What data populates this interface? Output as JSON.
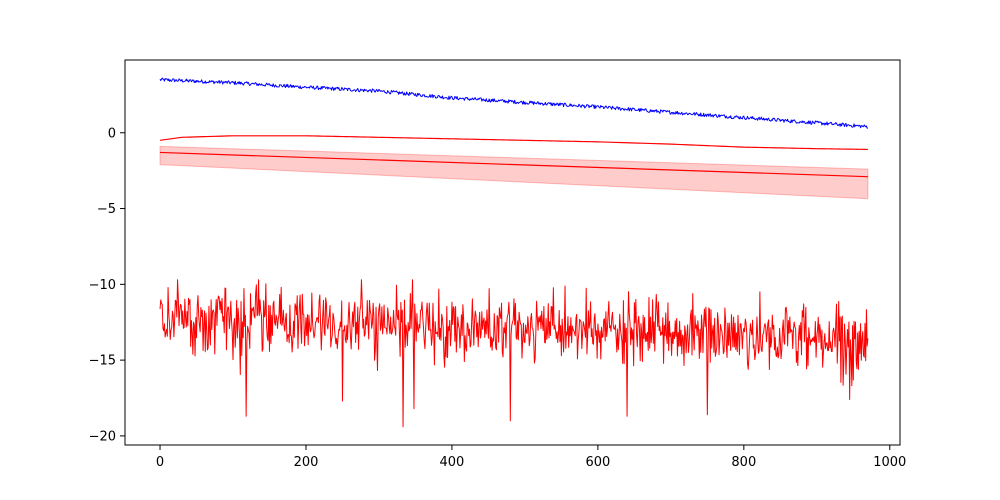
{
  "chart_data": {
    "type": "line",
    "title": "",
    "xlabel": "",
    "ylabel": "",
    "xlim": [
      -48,
      1014
    ],
    "ylim": [
      -20.6,
      4.8
    ],
    "grid": false,
    "x_ticks": [
      0,
      200,
      400,
      600,
      800,
      1000
    ],
    "x_tick_labels": [
      "0",
      "200",
      "400",
      "600",
      "800",
      "1000"
    ],
    "y_ticks": [
      0,
      -5,
      -10,
      -15,
      -20
    ],
    "y_tick_labels": [
      "0",
      "−5",
      "−10",
      "−15",
      "−20"
    ],
    "series": [
      {
        "color": "#0000ff",
        "style": "noisy-line",
        "x_range": [
          0,
          970
        ],
        "keypoints": [
          [
            0,
            3.5
          ],
          [
            100,
            3.3
          ],
          [
            200,
            3.0
          ],
          [
            300,
            2.75
          ],
          [
            400,
            2.3
          ],
          [
            500,
            2.0
          ],
          [
            600,
            1.7
          ],
          [
            700,
            1.35
          ],
          [
            800,
            1.0
          ],
          [
            900,
            0.65
          ],
          [
            970,
            0.4
          ]
        ],
        "noise_amplitude": 0.12
      },
      {
        "color": "#ff0000",
        "style": "smooth-line",
        "keypoints": [
          [
            0,
            -0.5
          ],
          [
            30,
            -0.3
          ],
          [
            100,
            -0.2
          ],
          [
            200,
            -0.2
          ],
          [
            300,
            -0.3
          ],
          [
            400,
            -0.4
          ],
          [
            500,
            -0.5
          ],
          [
            600,
            -0.6
          ],
          [
            700,
            -0.75
          ],
          [
            800,
            -0.95
          ],
          [
            900,
            -1.05
          ],
          [
            970,
            -1.1
          ]
        ]
      },
      {
        "color": "#ff0000",
        "style": "line-with-band",
        "x_range": [
          0,
          970
        ],
        "center": [
          -1.3,
          -2.9
        ],
        "band_upper": [
          -0.9,
          -2.4
        ],
        "band_lower": [
          -2.1,
          -4.35
        ],
        "band_color": "#ff0000",
        "band_opacity": 0.2
      },
      {
        "color": "#ff0000",
        "style": "noisy-line",
        "x_range": [
          0,
          970
        ],
        "mean_start": -12.3,
        "mean_end": -13.6,
        "noise_std": 1.05,
        "y_max": -9.7,
        "y_min": -19.4,
        "spikes": [
          [
            118,
            -18.7
          ],
          [
            250,
            -17.7
          ],
          [
            333,
            -19.4
          ],
          [
            348,
            -18.2
          ],
          [
            480,
            -19.0
          ],
          [
            640,
            -18.7
          ],
          [
            750,
            -18.6
          ],
          [
            945,
            -17.6
          ]
        ]
      }
    ]
  }
}
